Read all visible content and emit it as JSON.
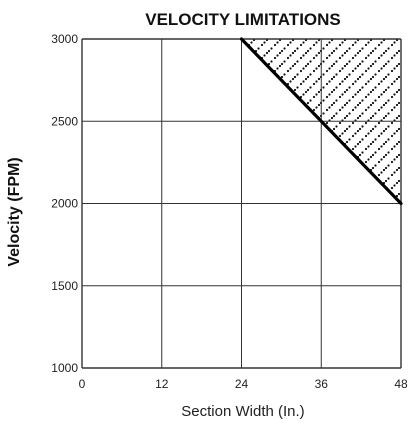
{
  "chart_data": {
    "type": "line",
    "title": "VELOCITY LIMITATIONS",
    "xlabel": "Section Width (In.)",
    "ylabel": "Velocity (FPM)",
    "xlim": [
      0,
      48
    ],
    "ylim": [
      1000,
      3000
    ],
    "x_ticks": [
      "0",
      "12",
      "24",
      "36",
      "48"
    ],
    "y_ticks": [
      "1000",
      "1500",
      "2000",
      "2500",
      "3000"
    ],
    "grid": true,
    "series": [
      {
        "x": [
          24,
          48
        ],
        "y": [
          3000,
          2000
        ]
      }
    ],
    "shaded_region": {
      "pattern": "dotted",
      "x": [
        24,
        48,
        48
      ],
      "y": [
        3000,
        3000,
        2000
      ]
    }
  }
}
